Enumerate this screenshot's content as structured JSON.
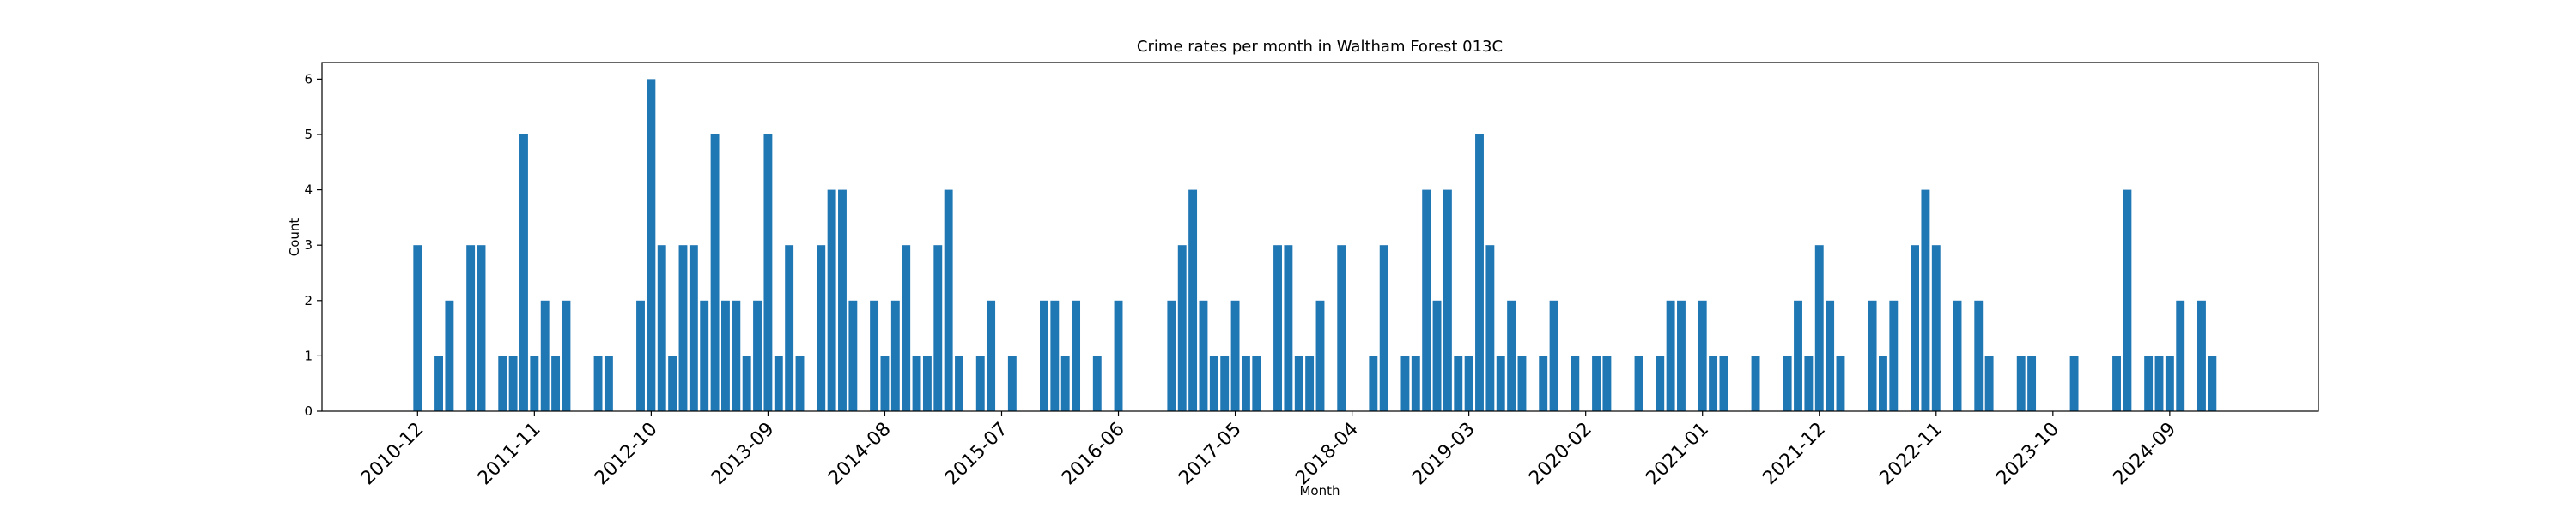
{
  "chart_data": {
    "type": "bar",
    "title": "Crime rates per month in Waltham Forest 013C",
    "xlabel": "Month",
    "ylabel": "Count",
    "color": "#1f77b4",
    "x": [
      "2010-12",
      "2011-02",
      "2011-03",
      "2011-05",
      "2011-06",
      "2011-08",
      "2011-09",
      "2011-10",
      "2011-11",
      "2011-12",
      "2012-01",
      "2012-02",
      "2012-05",
      "2012-06",
      "2012-09",
      "2012-10",
      "2012-11",
      "2012-12",
      "2013-01",
      "2013-02",
      "2013-03",
      "2013-04",
      "2013-05",
      "2013-06",
      "2013-07",
      "2013-08",
      "2013-09",
      "2013-10",
      "2013-11",
      "2013-12",
      "2014-02",
      "2014-03",
      "2014-04",
      "2014-05",
      "2014-07",
      "2014-08",
      "2014-09",
      "2014-10",
      "2014-11",
      "2014-12",
      "2015-01",
      "2015-02",
      "2015-03",
      "2015-05",
      "2015-06",
      "2015-08",
      "2015-11",
      "2015-12",
      "2016-01",
      "2016-02",
      "2016-04",
      "2016-06",
      "2016-11",
      "2016-12",
      "2017-01",
      "2017-02",
      "2017-03",
      "2017-04",
      "2017-05",
      "2017-06",
      "2017-07",
      "2017-09",
      "2017-10",
      "2017-11",
      "2017-12",
      "2018-01",
      "2018-03",
      "2018-06",
      "2018-07",
      "2018-09",
      "2018-10",
      "2018-11",
      "2018-12",
      "2019-01",
      "2019-02",
      "2019-03",
      "2019-04",
      "2019-05",
      "2019-06",
      "2019-07",
      "2019-08",
      "2019-10",
      "2019-11",
      "2020-01",
      "2020-03",
      "2020-04",
      "2020-07",
      "2020-09",
      "2020-10",
      "2020-11",
      "2021-01",
      "2021-02",
      "2021-03",
      "2021-06",
      "2021-09",
      "2021-10",
      "2021-11",
      "2021-12",
      "2022-01",
      "2022-02",
      "2022-05",
      "2022-06",
      "2022-07",
      "2022-09",
      "2022-10",
      "2022-11",
      "2023-01",
      "2023-03",
      "2023-04",
      "2023-07",
      "2023-08",
      "2023-12",
      "2024-04",
      "2024-05",
      "2024-07",
      "2024-08",
      "2024-09",
      "2024-10",
      "2024-12",
      "2025-01"
    ],
    "values": [
      3,
      1,
      2,
      3,
      3,
      1,
      1,
      5,
      1,
      2,
      1,
      2,
      1,
      1,
      2,
      6,
      3,
      1,
      3,
      3,
      2,
      5,
      2,
      2,
      1,
      2,
      5,
      1,
      3,
      1,
      3,
      4,
      4,
      2,
      2,
      1,
      2,
      3,
      1,
      1,
      3,
      4,
      1,
      1,
      2,
      1,
      2,
      2,
      1,
      2,
      1,
      2,
      2,
      3,
      4,
      2,
      1,
      1,
      2,
      1,
      1,
      3,
      3,
      1,
      1,
      2,
      3,
      1,
      3,
      1,
      1,
      4,
      2,
      4,
      1,
      1,
      5,
      3,
      1,
      2,
      1,
      1,
      2,
      1,
      1,
      1,
      1,
      1,
      2,
      2,
      2,
      1,
      1,
      1,
      1,
      2,
      1,
      3,
      2,
      1,
      2,
      1,
      2,
      3,
      4,
      3,
      2,
      2,
      1,
      1,
      1,
      1,
      1,
      4,
      1,
      1,
      1,
      2,
      2,
      1
    ],
    "xlim": [
      "2010-03",
      "2025-11"
    ],
    "xticks": [
      "2010-12",
      "2011-11",
      "2012-10",
      "2013-09",
      "2014-08",
      "2015-07",
      "2016-06",
      "2017-05",
      "2018-04",
      "2019-03",
      "2020-02",
      "2021-01",
      "2021-12",
      "2022-11",
      "2023-10",
      "2024-09"
    ],
    "ylim": [
      0,
      6.3
    ],
    "yticks": [
      0,
      1,
      2,
      3,
      4,
      5,
      6
    ]
  }
}
